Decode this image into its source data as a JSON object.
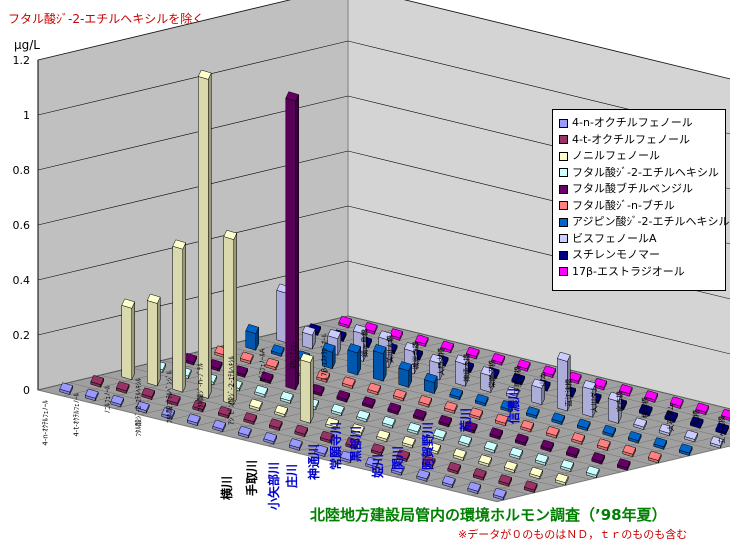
{
  "chart_data": {
    "type": "bar",
    "subtitle_note": "フタル酸ｼﾞ-2-エチルヘキシルを除く",
    "ylabel": "μg/L",
    "ylim": [
      0,
      1.2
    ],
    "yticks": [
      "0",
      "0.2",
      "0.4",
      "0.6",
      "0.8",
      "1",
      "1.2"
    ],
    "categories": [
      "横川 鍋ヶ島橋",
      "手取川 美川大橋",
      "小矢部川 城光寺橋",
      "庄川 大門大橋",
      "神通川 神通大橋",
      "常願寺川 常願寺橋",
      "黒部川 下黒部橋",
      "姫川 山本",
      "関川 直江津橋",
      "阿賀野川 大川ダム",
      "阿賀野川 宮古橋",
      "阿賀野川 横雲橋",
      "荒川 大石ダム",
      "荒川 旭橋",
      "信濃川 立ヶ花橋",
      "信濃川 平成大橋",
      "信濃川 住吉橋",
      "信濃川 帝石橋"
    ],
    "column_labels": [
      "鍋ヶ島橋",
      "美川大橋",
      "城光寺橋",
      "大門大橋",
      "神通大橋",
      "常願寺橋",
      "下黒部橋",
      "山本",
      "直江津橋",
      "大川ダム",
      "宮古橋",
      "横雲橋",
      "大石ダム",
      "旭橋",
      "立ヶ花橋",
      "平成大橋",
      "住吉橋",
      "帝石橋"
    ],
    "rivers": [
      {
        "name": "横川",
        "color": "#000000"
      },
      {
        "name": "手取川",
        "color": "#000000"
      },
      {
        "name": "小矢部川",
        "color": "#0000cc"
      },
      {
        "name": "庄川",
        "color": "#0000cc"
      },
      {
        "name": "神通川",
        "color": "#0000cc"
      },
      {
        "name": "常願寺川",
        "color": "#0000cc"
      },
      {
        "name": "黒部川",
        "color": "#0000cc"
      },
      {
        "name": "姫川",
        "color": "#0000cc"
      },
      {
        "name": "関川",
        "color": "#0000cc"
      },
      {
        "name": "阿賀野川",
        "color": "#0000cc"
      },
      {
        "name": "荒川",
        "color": "#0000cc"
      },
      {
        "name": "信濃川",
        "color": "#0000cc"
      }
    ],
    "series": [
      {
        "name": "4-n-オクチルフェノール",
        "short": "4-n-ｵｸﾁﾙﾌｪﾉｰﾙ",
        "color": "#9999ff",
        "values": [
          0,
          0,
          0,
          0,
          0,
          0,
          0,
          0,
          0,
          0,
          0,
          0,
          0,
          0,
          0,
          0,
          0,
          0
        ]
      },
      {
        "name": "4-t-オクチルフェノール",
        "short": "4-t-ｵｸﾁﾙﾌｪﾉｰﾙ",
        "color": "#993366",
        "values": [
          0,
          0,
          0,
          0,
          0,
          0,
          0,
          0,
          0,
          0,
          0,
          0,
          0,
          0,
          0,
          0,
          0,
          0
        ]
      },
      {
        "name": "ノニルフェノール",
        "short": "ﾉﾆﾙﾌｪﾉｰﾙ",
        "color": "#ffffcc",
        "values": [
          0.26,
          0.3,
          0.52,
          1.16,
          0.6,
          0,
          0,
          0.22,
          0,
          0,
          0,
          0,
          0,
          0,
          0,
          0,
          0,
          0
        ]
      },
      {
        "name": "フタル酸ｼﾞ-2-エチルヘキシル",
        "short": "ﾌﾀﾙ酸ｼﾞ-2-ｴﾁﾙﾍｷｼﾙ",
        "color": "#ccffff",
        "values": [
          0,
          0,
          0,
          0,
          0,
          0,
          0,
          0,
          0,
          0,
          0,
          0,
          0,
          0,
          0,
          0,
          0,
          0
        ]
      },
      {
        "name": "フタル酸ブチルベンジル",
        "short": "ﾌﾀﾙ酸ﾌﾞﾁﾙﾍﾞﾝｼﾞﾙ",
        "color": "#660066",
        "values": [
          0,
          0,
          0,
          0,
          1.05,
          0,
          0,
          0,
          0,
          0,
          0,
          0,
          0,
          0,
          0,
          0,
          0,
          0
        ]
      },
      {
        "name": "フタル酸ｼﾞ-n-ブチル",
        "short": "ﾌﾀﾙ酸ｼﾞ-n-ﾌﾞﾁﾙ",
        "color": "#ff8080",
        "values": [
          0,
          0,
          0,
          0,
          0,
          0,
          0,
          0,
          0,
          0,
          0,
          0,
          0,
          0,
          0,
          0,
          0,
          0
        ]
      },
      {
        "name": "アジピン酸ｼﾞ-2-エチルヘキシル",
        "short": "ｱｼﾞﾋﾟﾝ酸ｼﾞ-2-ｴﾁﾙﾍｷｼﾙ",
        "color": "#0066cc",
        "values": [
          0.06,
          0,
          0,
          0.06,
          0.08,
          0.1,
          0.06,
          0.04,
          0,
          0,
          0,
          0,
          0,
          0,
          0,
          0,
          0,
          0
        ]
      },
      {
        "name": "ビスフェノールA",
        "short": "ﾋﾞｽﾌｪﾉｰﾙA",
        "color": "#ccccff",
        "values": [
          0.18,
          0.05,
          0.06,
          0.1,
          0.1,
          0.08,
          0.06,
          0.08,
          0.06,
          0,
          0.06,
          0.18,
          0.1,
          0.08,
          0,
          0,
          0,
          0
        ]
      },
      {
        "name": "スチレンモノマー",
        "short": "ｽﾁﾚﾝﾓﾉﾏｰ",
        "color": "#000080",
        "values": [
          0,
          0,
          0,
          0,
          0,
          0,
          0,
          0,
          0,
          0,
          0,
          0,
          0,
          0,
          0,
          0,
          0,
          0
        ]
      },
      {
        "name": "17β-エストラジオール",
        "short": "17β-ｴｽﾄﾗｼﾞｵｰﾙ",
        "color": "#ff00ff",
        "values": [
          0,
          0,
          0,
          0,
          0,
          0,
          0,
          0,
          0,
          0,
          0,
          0,
          0,
          0,
          0,
          0,
          0,
          0
        ]
      }
    ],
    "legend_position": "right",
    "grid": true
  },
  "title": "北陸地方建設局管内の環境ホルモン調査（’98年夏）",
  "note": "※データが０のものはＮＤ，ｔｒのものも含む"
}
